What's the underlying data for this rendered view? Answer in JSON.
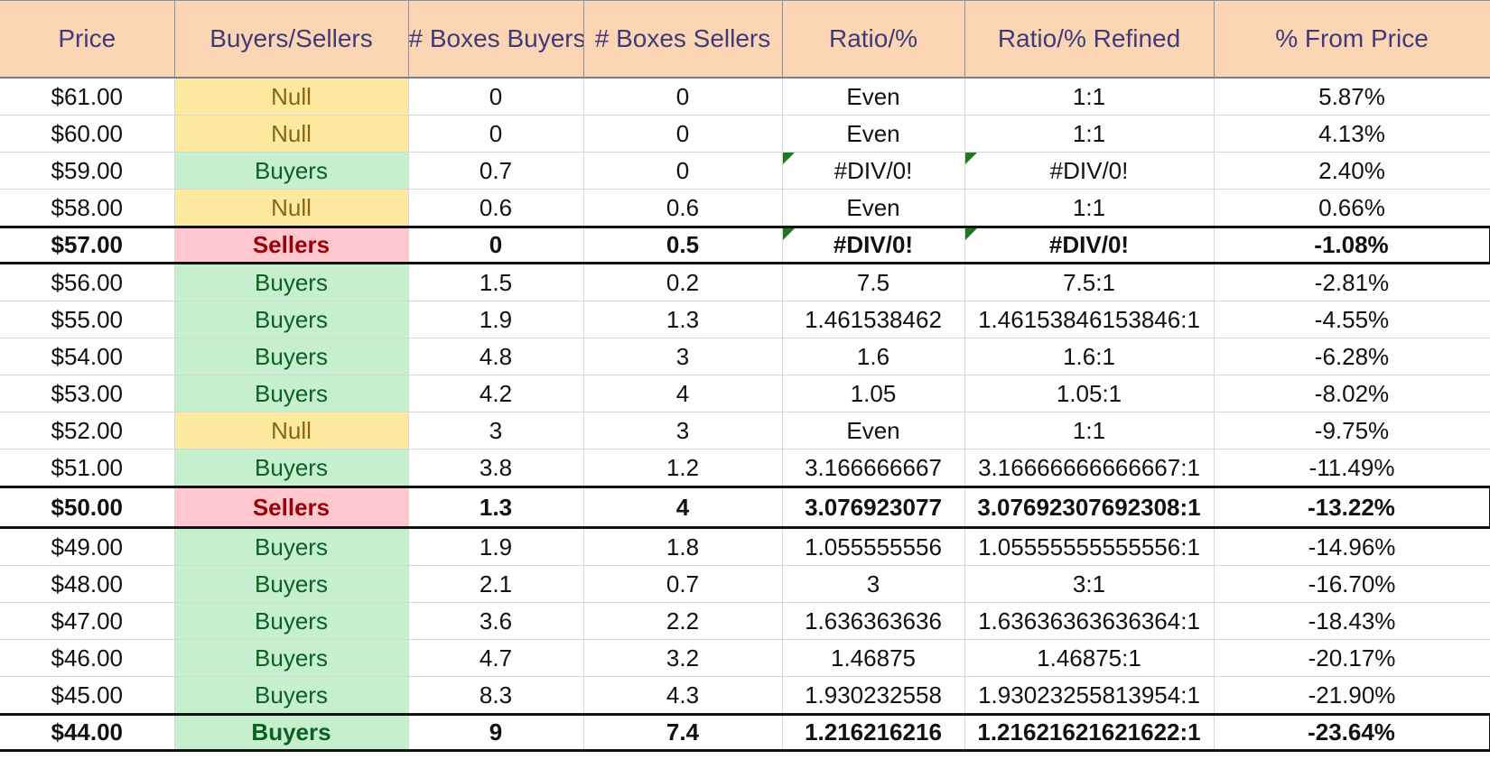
{
  "headers": [
    "Price",
    "Buyers/Sellers",
    "# Boxes Buyers",
    "# Boxes Sellers",
    "Ratio/%",
    "Ratio/% Refined",
    "% From Price"
  ],
  "rows": [
    {
      "price": "$61.00",
      "side": "Null",
      "buyers": "0",
      "sellers": "0",
      "ratio": "Even",
      "refined": "1:1",
      "from_price": "5.87%",
      "style": "null"
    },
    {
      "price": "$60.00",
      "side": "Null",
      "buyers": "0",
      "sellers": "0",
      "ratio": "Even",
      "refined": "1:1",
      "from_price": "4.13%",
      "style": "null"
    },
    {
      "price": "$59.00",
      "side": "Buyers",
      "buyers": "0.7",
      "sellers": "0",
      "ratio": "#DIV/0!",
      "refined": "#DIV/0!",
      "from_price": "2.40%",
      "style": "buyers",
      "flag": true
    },
    {
      "price": "$58.00",
      "side": "Null",
      "buyers": "0.6",
      "sellers": "0.6",
      "ratio": "Even",
      "refined": "1:1",
      "from_price": "0.66%",
      "style": "null"
    },
    {
      "price": "$57.00",
      "side": "Sellers",
      "buyers": "0",
      "sellers": "0.5",
      "ratio": "#DIV/0!",
      "refined": "#DIV/0!",
      "from_price": "-1.08%",
      "style": "sellers",
      "flag": true,
      "bold": true,
      "boxed": true
    },
    {
      "price": "$56.00",
      "side": "Buyers",
      "buyers": "1.5",
      "sellers": "0.2",
      "ratio": "7.5",
      "refined": "7.5:1",
      "from_price": "-2.81%",
      "style": "buyers"
    },
    {
      "price": "$55.00",
      "side": "Buyers",
      "buyers": "1.9",
      "sellers": "1.3",
      "ratio": "1.461538462",
      "refined": "1.46153846153846:1",
      "from_price": "-4.55%",
      "style": "buyers"
    },
    {
      "price": "$54.00",
      "side": "Buyers",
      "buyers": "4.8",
      "sellers": "3",
      "ratio": "1.6",
      "refined": "1.6:1",
      "from_price": "-6.28%",
      "style": "buyers"
    },
    {
      "price": "$53.00",
      "side": "Buyers",
      "buyers": "4.2",
      "sellers": "4",
      "ratio": "1.05",
      "refined": "1.05:1",
      "from_price": "-8.02%",
      "style": "buyers"
    },
    {
      "price": "$52.00",
      "side": "Null",
      "buyers": "3",
      "sellers": "3",
      "ratio": "Even",
      "refined": "1:1",
      "from_price": "-9.75%",
      "style": "null"
    },
    {
      "price": "$51.00",
      "side": "Buyers",
      "buyers": "3.8",
      "sellers": "1.2",
      "ratio": "3.166666667",
      "refined": "3.16666666666667:1",
      "from_price": "-11.49%",
      "style": "buyers"
    },
    {
      "price": "$50.00",
      "side": "Sellers",
      "buyers": "1.3",
      "sellers": "4",
      "ratio": "3.076923077",
      "refined": "3.07692307692308:1",
      "from_price": "-13.22%",
      "style": "sellers",
      "bold": true,
      "boxed": true,
      "tall": true
    },
    {
      "price": "$49.00",
      "side": "Buyers",
      "buyers": "1.9",
      "sellers": "1.8",
      "ratio": "1.055555556",
      "refined": "1.05555555555556:1",
      "from_price": "-14.96%",
      "style": "buyers"
    },
    {
      "price": "$48.00",
      "side": "Buyers",
      "buyers": "2.1",
      "sellers": "0.7",
      "ratio": "3",
      "refined": "3:1",
      "from_price": "-16.70%",
      "style": "buyers"
    },
    {
      "price": "$47.00",
      "side": "Buyers",
      "buyers": "3.6",
      "sellers": "2.2",
      "ratio": "1.636363636",
      "refined": "1.63636363636364:1",
      "from_price": "-18.43%",
      "style": "buyers"
    },
    {
      "price": "$46.00",
      "side": "Buyers",
      "buyers": "4.7",
      "sellers": "3.2",
      "ratio": "1.46875",
      "refined": "1.46875:1",
      "from_price": "-20.17%",
      "style": "buyers"
    },
    {
      "price": "$45.00",
      "side": "Buyers",
      "buyers": "8.3",
      "sellers": "4.3",
      "ratio": "1.930232558",
      "refined": "1.93023255813954:1",
      "from_price": "-21.90%",
      "style": "buyers"
    },
    {
      "price": "$44.00",
      "side": "Buyers",
      "buyers": "9",
      "sellers": "7.4",
      "ratio": "1.216216216",
      "refined": "1.21621621621622:1",
      "from_price": "-23.64%",
      "style": "buyers",
      "bold": true,
      "boxed": true
    }
  ],
  "colors": {
    "header_bg": "#fcd6b4",
    "header_text": "#3f3b7a",
    "null_bg": "#fde99f",
    "null_text": "#8b6410",
    "buyers_bg": "#c6efce",
    "buyers_text": "#0a6123",
    "sellers_bg": "#ffc7ce",
    "sellers_text": "#9c0007",
    "error_flag": "#1f7a1f"
  }
}
